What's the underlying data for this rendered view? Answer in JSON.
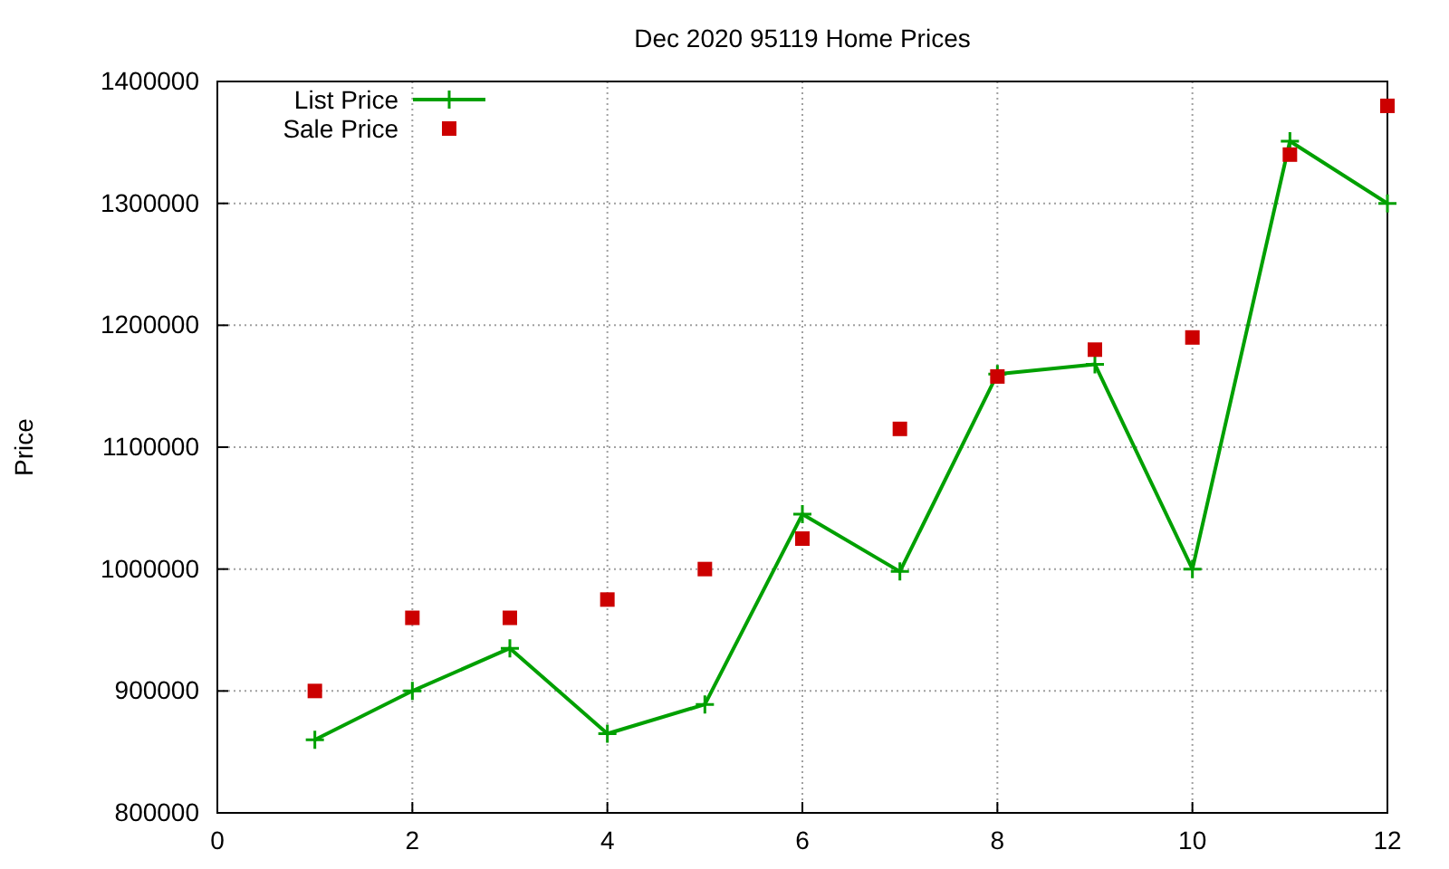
{
  "chart_data": {
    "type": "line",
    "title": "Dec 2020 95119 Home Prices",
    "ylabel": "Price",
    "x": [
      1,
      2,
      3,
      4,
      5,
      6,
      7,
      8,
      9,
      10,
      11,
      12
    ],
    "xlim": [
      0,
      12
    ],
    "xticks": [
      0,
      2,
      4,
      6,
      8,
      10,
      12
    ],
    "ylim": [
      800000,
      1400000
    ],
    "yticks": [
      800000,
      900000,
      1000000,
      1100000,
      1200000,
      1300000,
      1400000
    ],
    "grid": true,
    "legend": "top left",
    "series": [
      {
        "name": "List Price",
        "color": "#00a000",
        "marker": "cross",
        "values": [
          860000,
          900000,
          935000,
          865000,
          889000,
          1045000,
          998000,
          1160000,
          1168000,
          1000000,
          1351000,
          1300000
        ]
      },
      {
        "name": "Sale Price",
        "type": "scatter",
        "color": "#cc0000",
        "marker": "square",
        "values": [
          900000,
          960000,
          960000,
          975000,
          1000000,
          1025000,
          1115000,
          1158000,
          1180000,
          1190000,
          1340000,
          1380000
        ]
      }
    ]
  }
}
